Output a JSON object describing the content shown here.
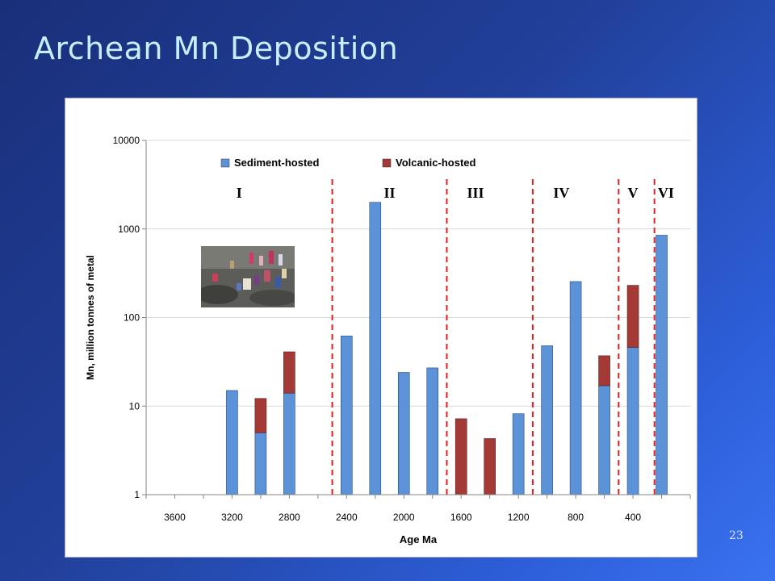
{
  "slide": {
    "title": "Archean Mn Deposition",
    "number": "23"
  },
  "colors": {
    "sediment": "#5b92d8",
    "volcanic": "#a33a36",
    "boundary": "#e02020",
    "grid": "#d9d9d9"
  },
  "chart_data": {
    "type": "bar",
    "stacked": true,
    "y_scale": "log",
    "ylim": [
      1,
      10000
    ],
    "xlabel": "Age Ma",
    "ylabel": "Mn, million tonnes of metal",
    "y_ticks": [
      "1",
      "10",
      "100",
      "1000",
      "10000"
    ],
    "x_tick_labels": [
      "3600",
      "3200",
      "2800",
      "2400",
      "2000",
      "1600",
      "1200",
      "800",
      "400"
    ],
    "categories": [
      3600,
      3400,
      3200,
      3000,
      2800,
      2600,
      2400,
      2200,
      2000,
      1800,
      1600,
      1400,
      1200,
      1000,
      800,
      600,
      400,
      200
    ],
    "series": [
      {
        "name": "Sediment-hosted",
        "values": [
          0,
          0,
          15,
          5,
          14,
          0,
          62,
          2000,
          24,
          27,
          0,
          0,
          8.2,
          48,
          255,
          17,
          46,
          850
        ]
      },
      {
        "name": "Volcanic-hosted",
        "values": [
          0,
          0,
          0,
          7.2,
          27,
          0,
          0,
          0,
          0,
          0,
          6.2,
          3.3,
          0,
          0,
          0,
          20,
          185,
          0
        ]
      }
    ],
    "legend": "top-left",
    "grid": "horizontal",
    "boundaries_ma": [
      2500,
      1700,
      1100,
      500,
      250
    ],
    "intervals": [
      {
        "label": "I",
        "age": 3150
      },
      {
        "label": "II",
        "age": 2100
      },
      {
        "label": "III",
        "age": 1500
      },
      {
        "label": "IV",
        "age": 900
      },
      {
        "label": "V",
        "age": 400
      },
      {
        "label": "VI",
        "age": 170
      }
    ]
  }
}
